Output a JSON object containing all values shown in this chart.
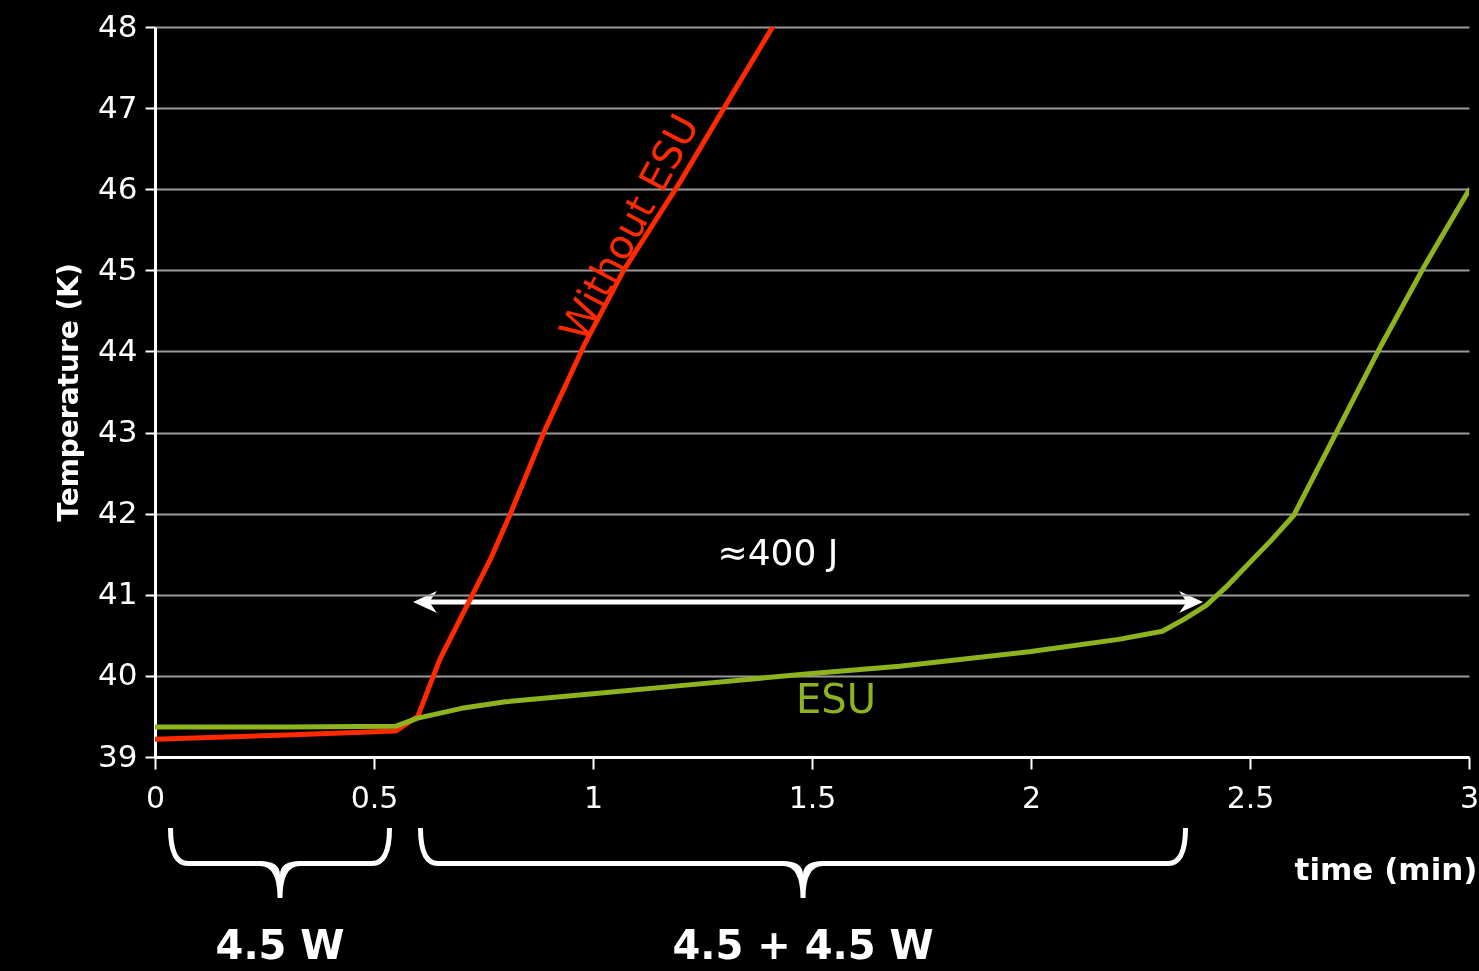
{
  "chart_data": {
    "type": "line",
    "xlabel": "time (min)",
    "ylabel": "Temperature (K)",
    "xlim": [
      0,
      3
    ],
    "xticks": [
      0,
      0.5,
      1,
      1.5,
      2,
      2.5,
      3
    ],
    "ylim": [
      39,
      48
    ],
    "yticks": [
      39,
      40,
      41,
      42,
      43,
      44,
      45,
      46,
      47,
      48
    ],
    "grid": "y",
    "marker": "none",
    "line_style": "solid",
    "series": [
      {
        "name": "Without ESU",
        "color": "#ff2a00",
        "x": [
          0,
          0.3,
          0.55,
          0.6,
          0.65,
          0.765,
          0.81,
          0.89,
          0.98,
          1.07,
          1.2,
          1.31,
          1.41
        ],
        "values": [
          39.22,
          39.27,
          39.32,
          39.5,
          40.2,
          41.43,
          41.98,
          43.03,
          44.08,
          45.0,
          46.1,
          47.1,
          48.0
        ]
      },
      {
        "name": "ESU",
        "color": "#8db31e",
        "x": [
          0,
          0.3,
          0.55,
          0.6,
          0.7,
          0.8,
          1.0,
          1.2,
          1.5,
          1.7,
          2.0,
          2.2,
          2.3,
          2.35,
          2.4,
          2.45,
          2.55,
          2.6,
          2.7,
          2.8,
          2.9,
          3.0
        ],
        "values": [
          39.37,
          39.37,
          39.38,
          39.48,
          39.6,
          39.68,
          39.78,
          39.88,
          40.03,
          40.12,
          40.3,
          40.45,
          40.55,
          40.7,
          40.87,
          41.12,
          41.68,
          41.98,
          43.03,
          44.08,
          45.07,
          45.99
        ]
      }
    ],
    "annotations": [
      "≈400 J",
      "4.5 W",
      "4.5 + 4.5 W"
    ]
  }
}
